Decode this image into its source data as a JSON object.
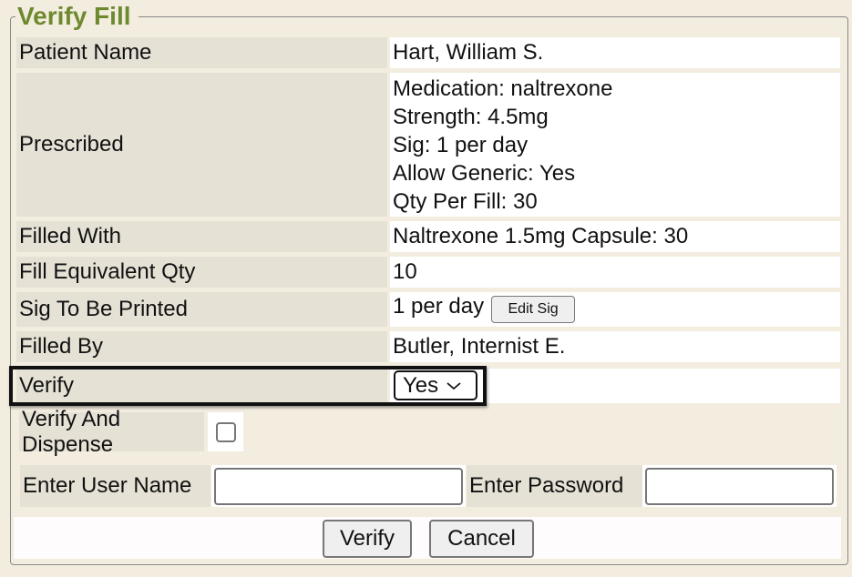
{
  "title": "Verify Fill",
  "rows": [
    {
      "label": "Patient Name",
      "value": "Hart, William S."
    },
    {
      "label": "Prescribed",
      "lines": [
        "Medication: naltrexone",
        "Strength: 4.5mg",
        "Sig: 1 per day",
        "Allow Generic: Yes",
        "Qty Per Fill: 30"
      ]
    },
    {
      "label": "Filled With",
      "value": "Naltrexone 1.5mg Capsule: 30"
    },
    {
      "label": "Fill Equivalent Qty",
      "value": "10"
    },
    {
      "label": "Sig To Be Printed",
      "value": "1 per day",
      "button": "Edit Sig"
    },
    {
      "label": "Filled By",
      "value": "Butler, Internist E."
    },
    {
      "label": "Verify",
      "selected": "Yes"
    }
  ],
  "verify_and_dispense": {
    "label": "Verify And Dispense",
    "checked": false
  },
  "username": {
    "label": "Enter User Name",
    "value": ""
  },
  "password": {
    "label": "Enter Password",
    "value": ""
  },
  "buttons": {
    "verify": "Verify",
    "cancel": "Cancel"
  }
}
